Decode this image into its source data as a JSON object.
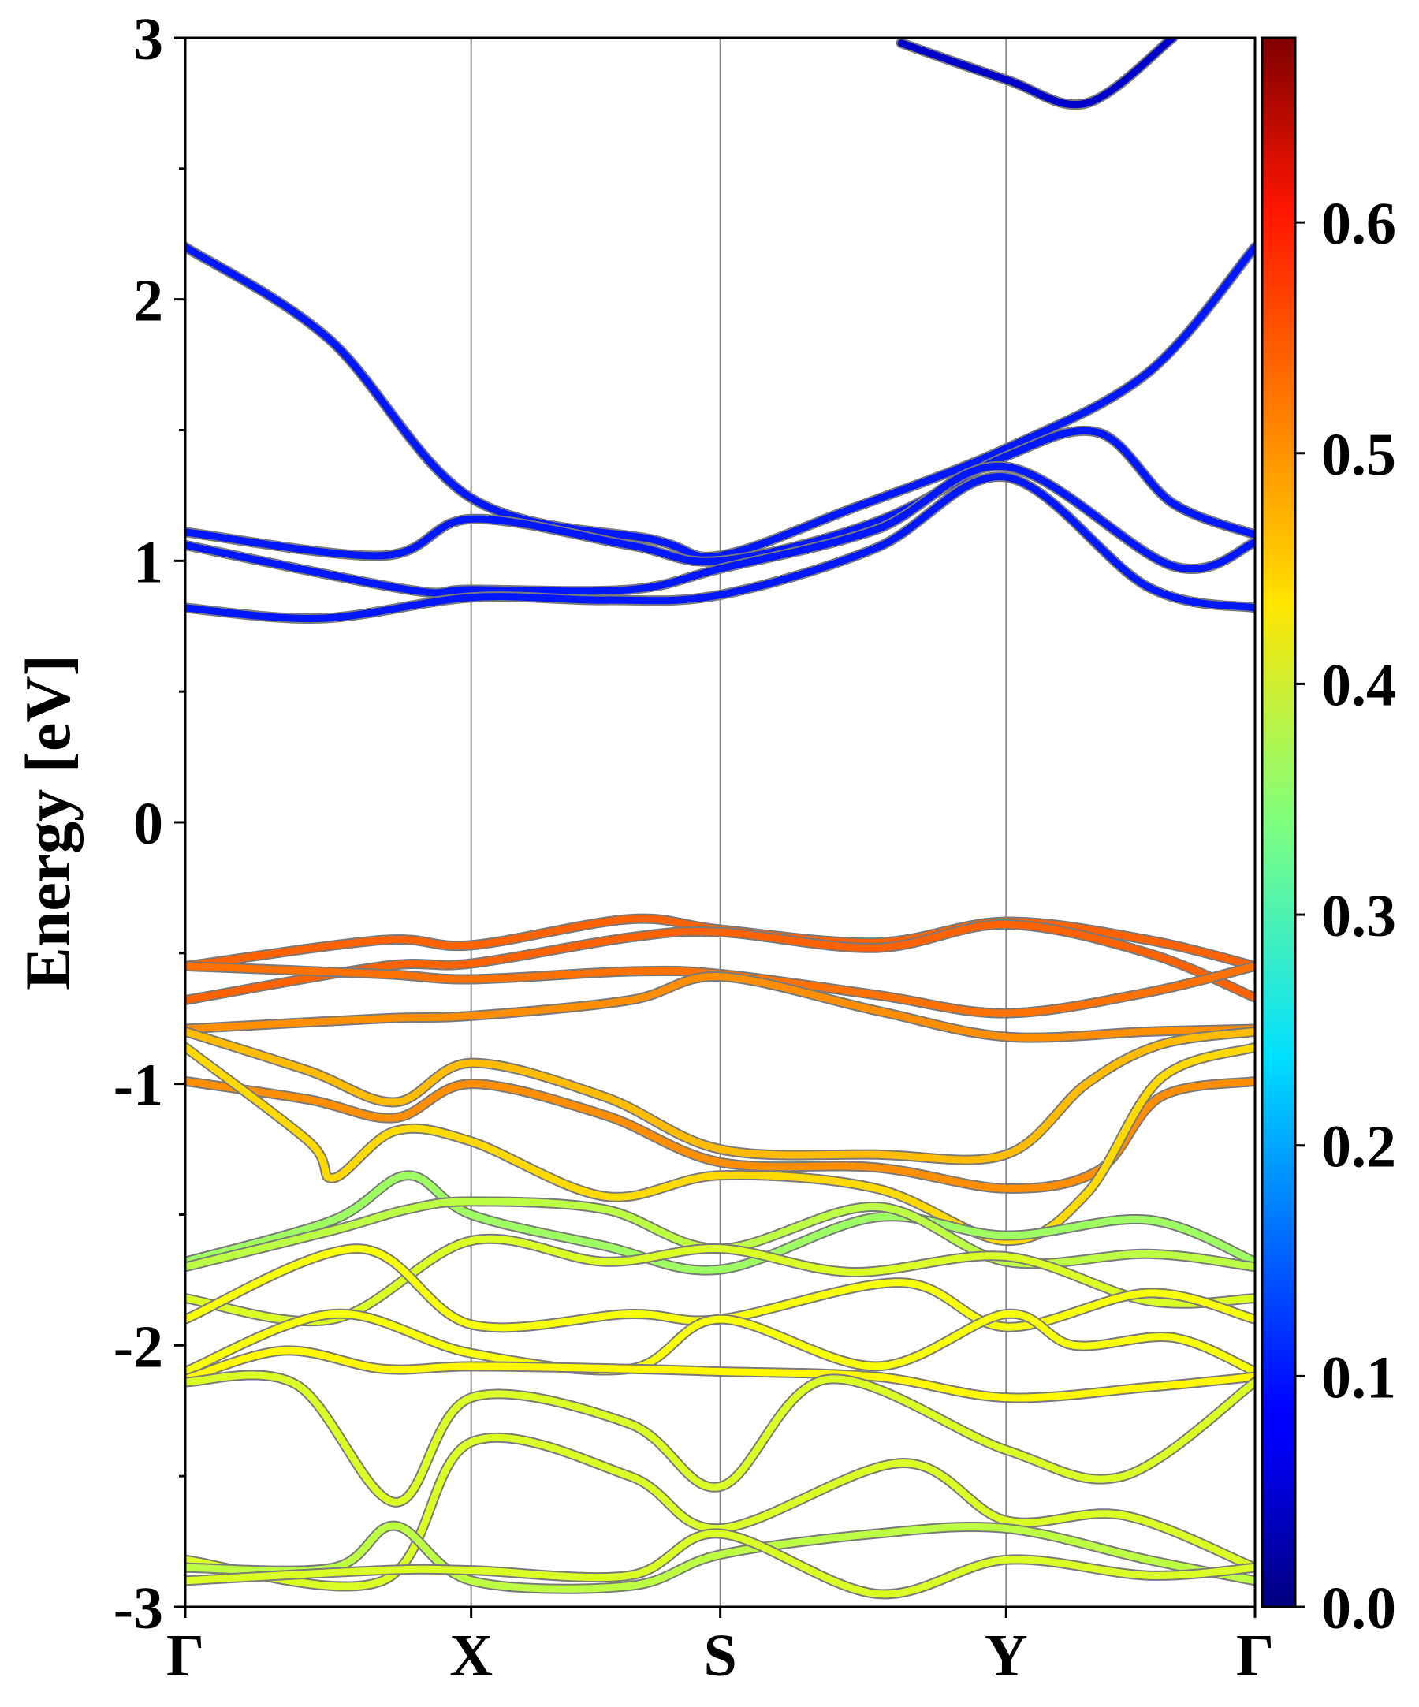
{
  "chart_data": {
    "type": "line",
    "title": "",
    "ylabel": "Energy [eV]",
    "xlabel": "",
    "ylim": [
      -3,
      3
    ],
    "yticks": [
      "-3",
      "-2",
      "-1",
      "0",
      "1",
      "2",
      "3"
    ],
    "kpoint_labels": [
      "Γ",
      "X",
      "S",
      "Y",
      "Γ"
    ],
    "kpoint_positions": [
      0,
      1.158,
      2.167,
      3.325,
      4.333
    ],
    "grid_vertical_at_kpoints": true,
    "colorbar": {
      "min": 0.0,
      "max": 0.68,
      "ticks": [
        "0.0",
        "0.1",
        "0.2",
        "0.3",
        "0.4",
        "0.5",
        "0.6"
      ],
      "colormap": "jet"
    },
    "bands": [
      {
        "x": [
          0,
          0.58,
          1.158,
          1.9,
          2.167,
          2.7,
          3.325,
          3.9,
          4.333
        ],
        "y": [
          2.2,
          1.85,
          1.24,
          1.08,
          1.02,
          1.2,
          1.43,
          1.72,
          2.2
        ],
        "w": 0.1
      },
      {
        "x": [
          0,
          0.8,
          1.158,
          1.8,
          2.167,
          2.8,
          3.325,
          3.7,
          4.0,
          4.333
        ],
        "y": [
          1.11,
          1.02,
          1.16,
          1.06,
          1.0,
          1.15,
          1.4,
          1.49,
          1.22,
          1.1
        ],
        "w": 0.1
      },
      {
        "x": [
          0,
          0.9,
          1.158,
          1.8,
          2.167,
          2.8,
          3.325,
          4.0,
          4.333
        ],
        "y": [
          1.06,
          0.89,
          0.89,
          0.89,
          0.97,
          1.12,
          1.36,
          0.98,
          1.07
        ],
        "w": 0.1
      },
      {
        "x": [
          0,
          0.55,
          1.158,
          1.7,
          2.167,
          2.8,
          3.325,
          3.9,
          4.333
        ],
        "y": [
          0.82,
          0.78,
          0.86,
          0.85,
          0.87,
          1.05,
          1.32,
          0.9,
          0.82
        ],
        "w": 0.1
      },
      {
        "x": [
          2.9,
          3.325,
          3.65,
          4.0
        ],
        "y": [
          2.98,
          2.84,
          2.75,
          3.0
        ],
        "w": 0.05
      },
      {
        "x": [
          0,
          0.8,
          1.158,
          1.8,
          2.167,
          2.8,
          3.325,
          3.9,
          4.333
        ],
        "y": [
          -0.55,
          -0.45,
          -0.47,
          -0.37,
          -0.41,
          -0.46,
          -0.38,
          -0.45,
          -0.55
        ],
        "w": 0.53
      },
      {
        "x": [
          0,
          0.8,
          1.158,
          1.8,
          2.167,
          2.8,
          3.325,
          3.9,
          4.333
        ],
        "y": [
          -0.68,
          -0.55,
          -0.54,
          -0.44,
          -0.42,
          -0.48,
          -0.39,
          -0.5,
          -0.67
        ],
        "w": 0.53
      },
      {
        "x": [
          0,
          0.8,
          1.158,
          1.8,
          2.167,
          2.8,
          3.325,
          3.9,
          4.333
        ],
        "y": [
          -0.55,
          -0.58,
          -0.6,
          -0.57,
          -0.58,
          -0.66,
          -0.73,
          -0.65,
          -0.55
        ],
        "w": 0.52
      },
      {
        "x": [
          0,
          0.8,
          1.158,
          1.8,
          2.167,
          2.8,
          3.325,
          3.9,
          4.333
        ],
        "y": [
          -0.79,
          -0.75,
          -0.74,
          -0.68,
          -0.59,
          -0.72,
          -0.82,
          -0.8,
          -0.79
        ],
        "w": 0.5
      },
      {
        "x": [
          0,
          0.5,
          0.85,
          1.158,
          1.7,
          2.167,
          2.8,
          3.325,
          3.65,
          3.95,
          4.333
        ],
        "y": [
          -0.8,
          -0.95,
          -1.07,
          -0.92,
          -1.05,
          -1.25,
          -1.27,
          -1.27,
          -1.0,
          -0.85,
          -0.8
        ],
        "w": 0.47
      },
      {
        "x": [
          0,
          0.5,
          0.85,
          1.158,
          1.7,
          2.167,
          2.8,
          3.325,
          3.7,
          3.95,
          4.333
        ],
        "y": [
          -0.99,
          -1.06,
          -1.13,
          -1.0,
          -1.12,
          -1.3,
          -1.32,
          -1.4,
          -1.33,
          -1.05,
          -0.99
        ],
        "w": 0.5
      },
      {
        "x": [
          0,
          0.5,
          0.6,
          0.85,
          1.158,
          1.7,
          2.167,
          2.8,
          3.325,
          3.65,
          3.95,
          4.333
        ],
        "y": [
          -0.86,
          -1.22,
          -1.36,
          -1.18,
          -1.22,
          -1.43,
          -1.35,
          -1.4,
          -1.6,
          -1.42,
          -0.98,
          -0.86
        ],
        "w": 0.45
      },
      {
        "x": [
          0,
          0.6,
          0.9,
          1.158,
          1.7,
          2.167,
          2.8,
          3.325,
          3.9,
          4.333
        ],
        "y": [
          -1.68,
          -1.52,
          -1.35,
          -1.5,
          -1.62,
          -1.71,
          -1.51,
          -1.58,
          -1.52,
          -1.68
        ],
        "w": 0.36
      },
      {
        "x": [
          0,
          0.6,
          0.9,
          1.158,
          1.7,
          2.167,
          2.8,
          3.325,
          3.9,
          4.333
        ],
        "y": [
          -1.7,
          -1.56,
          -1.48,
          -1.45,
          -1.48,
          -1.63,
          -1.47,
          -1.68,
          -1.65,
          -1.7
        ],
        "w": 0.38
      },
      {
        "x": [
          0,
          0.6,
          1.158,
          1.7,
          2.167,
          2.7,
          3.325,
          3.9,
          4.333
        ],
        "y": [
          -1.82,
          -1.9,
          -1.6,
          -1.68,
          -1.63,
          -1.72,
          -1.66,
          -1.83,
          -1.82
        ],
        "w": 0.4
      },
      {
        "x": [
          0,
          0.7,
          1.158,
          1.8,
          2.167,
          2.9,
          3.325,
          3.9,
          4.333
        ],
        "y": [
          -1.9,
          -1.63,
          -1.92,
          -1.88,
          -1.9,
          -1.76,
          -1.93,
          -1.8,
          -1.9
        ],
        "w": 0.42
      },
      {
        "x": [
          0,
          0.6,
          1.158,
          1.8,
          2.167,
          2.8,
          3.325,
          3.6,
          4.0,
          4.333
        ],
        "y": [
          -2.1,
          -1.88,
          -2.03,
          -2.09,
          -1.9,
          -2.08,
          -1.88,
          -2.0,
          -1.97,
          -2.1
        ],
        "w": 0.42
      },
      {
        "x": [
          0,
          0.4,
          0.8,
          1.158,
          1.8,
          2.167,
          2.8,
          3.325,
          3.9,
          4.333
        ],
        "y": [
          -2.13,
          -2.02,
          -2.09,
          -2.08,
          -2.09,
          -2.1,
          -2.12,
          -2.2,
          -2.16,
          -2.12
        ],
        "w": 0.43
      },
      {
        "x": [
          0,
          0.45,
          0.85,
          1.158,
          1.8,
          2.167,
          2.6,
          3.325,
          3.8,
          4.333
        ],
        "y": [
          -2.14,
          -2.15,
          -2.6,
          -2.2,
          -2.3,
          -2.54,
          -2.13,
          -2.4,
          -2.5,
          -2.14
        ],
        "w": 0.4
      },
      {
        "x": [
          0,
          0.8,
          1.158,
          1.8,
          2.167,
          2.9,
          3.325,
          3.8,
          4.333
        ],
        "y": [
          -2.82,
          -2.9,
          -2.37,
          -2.5,
          -2.7,
          -2.45,
          -2.67,
          -2.65,
          -2.85
        ],
        "w": 0.4
      },
      {
        "x": [
          0,
          0.6,
          0.85,
          1.158,
          1.8,
          2.167,
          2.8,
          3.325,
          3.9,
          4.333
        ],
        "y": [
          -2.85,
          -2.85,
          -2.69,
          -2.9,
          -2.92,
          -2.8,
          -2.72,
          -2.7,
          -2.82,
          -2.9
        ],
        "w": 0.38
      },
      {
        "x": [
          0,
          0.8,
          1.158,
          1.8,
          2.167,
          2.8,
          3.325,
          3.9,
          4.333
        ],
        "y": [
          -2.9,
          -2.86,
          -2.86,
          -2.88,
          -2.72,
          -2.95,
          -2.82,
          -2.88,
          -2.85
        ],
        "w": 0.4
      }
    ]
  }
}
